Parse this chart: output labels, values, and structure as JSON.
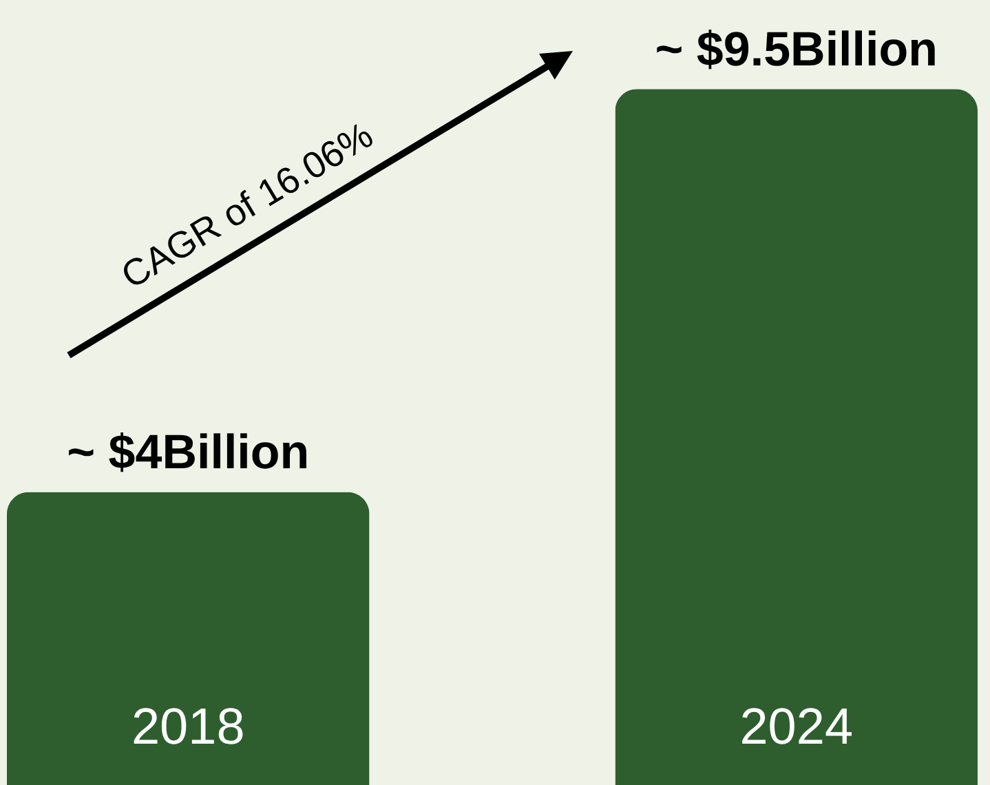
{
  "chart_data": {
    "type": "bar",
    "categories": [
      "2018",
      "2024"
    ],
    "values": [
      4,
      9.5
    ],
    "value_labels": [
      "~ $4Billion",
      "~ $9.5Billion"
    ],
    "color": "#2e5e2e",
    "annotations": [
      "CAGR of 16.06%"
    ]
  }
}
